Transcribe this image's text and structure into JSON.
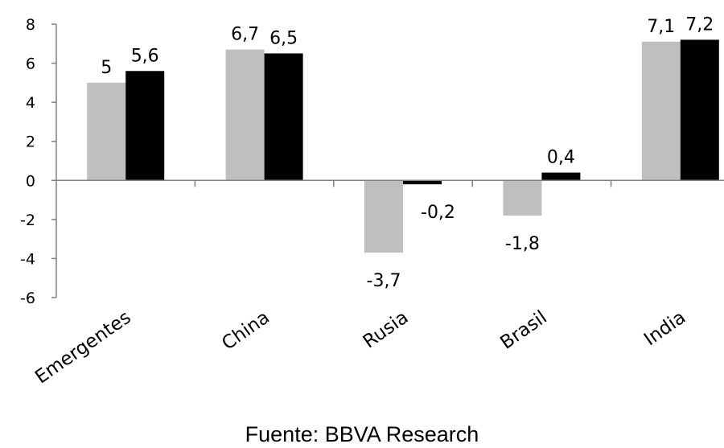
{
  "chart_data": {
    "type": "bar",
    "categories": [
      "Emergentes",
      "China",
      "Rusia",
      "Brasil",
      "India"
    ],
    "series": [
      {
        "values": [
          5,
          6.7,
          -3.7,
          -1.8,
          7.1
        ],
        "color": "#bfbfbf"
      },
      {
        "values": [
          5.6,
          6.5,
          -0.2,
          0.4,
          7.2
        ],
        "color": "#000000"
      }
    ],
    "data_labels": [
      [
        "5",
        "6,7",
        "-3,7",
        "-1,8",
        "7,1"
      ],
      [
        "5,6",
        "6,5",
        "-0,2",
        "0,4",
        "7,2"
      ]
    ],
    "yticks": [
      "8",
      "6",
      "4",
      "2",
      "0",
      "-2",
      "-4",
      "-6"
    ],
    "ylim": [
      -6,
      8
    ],
    "grid": false,
    "legend": "none"
  },
  "source": "Fuente: BBVA Research"
}
